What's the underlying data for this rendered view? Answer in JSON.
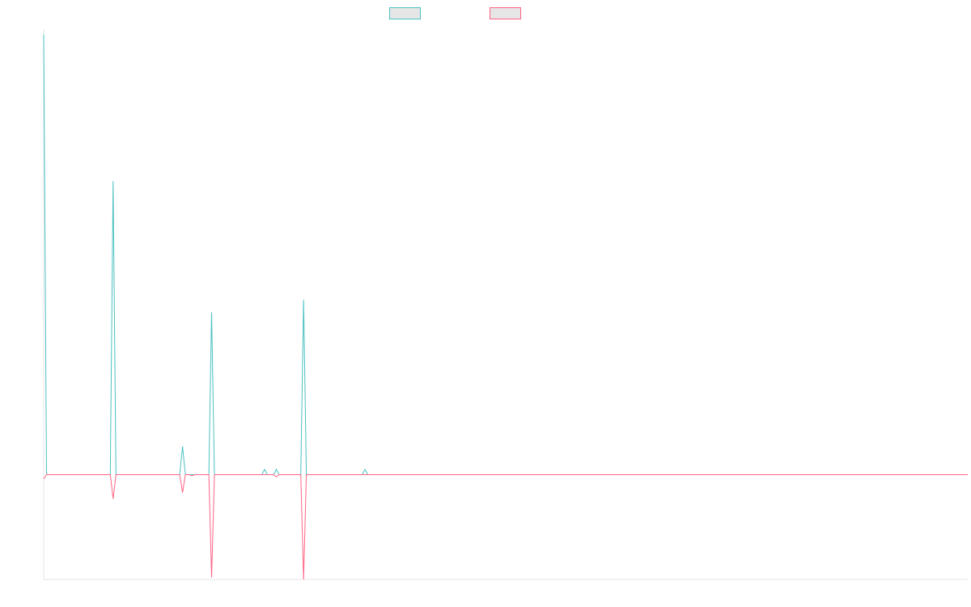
{
  "chart_data": {
    "type": "line",
    "title": "",
    "xlabel": "",
    "ylabel": "",
    "ylim": [
      -1,
      4.25
    ],
    "grid": false,
    "legend": "top-center",
    "series": [
      {
        "name": "",
        "color": "#4bc0c0",
        "points": [
          [
            0,
            4.2
          ],
          [
            1.2,
            0
          ],
          [
            28.4,
            0
          ],
          [
            29.6,
            2.8
          ],
          [
            30.8,
            0
          ],
          [
            58.0,
            0
          ],
          [
            59.2,
            0.27
          ],
          [
            60.4,
            0
          ],
          [
            70.4,
            0
          ],
          [
            71.6,
            1.55
          ],
          [
            72.8,
            0
          ],
          [
            93.0,
            0
          ],
          [
            94.2,
            0.05
          ],
          [
            95.4,
            0
          ],
          [
            98.0,
            0
          ],
          [
            99.2,
            0.05
          ],
          [
            100.4,
            0
          ],
          [
            109.6,
            0
          ],
          [
            110.8,
            1.67
          ],
          [
            112.0,
            0
          ],
          [
            135.8,
            0
          ],
          [
            137.0,
            0.05
          ],
          [
            138.2,
            0
          ],
          [
            394,
            0
          ]
        ]
      },
      {
        "name": "",
        "color": "#ff6384",
        "points": [
          [
            0,
            -0.04
          ],
          [
            1.2,
            0
          ],
          [
            28.4,
            0
          ],
          [
            29.6,
            -0.23
          ],
          [
            30.8,
            0
          ],
          [
            58.0,
            0
          ],
          [
            59.2,
            -0.17
          ],
          [
            60.4,
            0
          ],
          [
            62.0,
            0
          ],
          [
            63.2,
            -0.01
          ],
          [
            64.4,
            0
          ],
          [
            70.4,
            0
          ],
          [
            71.6,
            -0.98
          ],
          [
            72.8,
            0
          ],
          [
            98.0,
            0
          ],
          [
            99.2,
            -0.02
          ],
          [
            100.4,
            0
          ],
          [
            109.6,
            0
          ],
          [
            110.8,
            -1.0
          ],
          [
            112.0,
            0
          ],
          [
            394,
            0
          ]
        ]
      }
    ]
  }
}
